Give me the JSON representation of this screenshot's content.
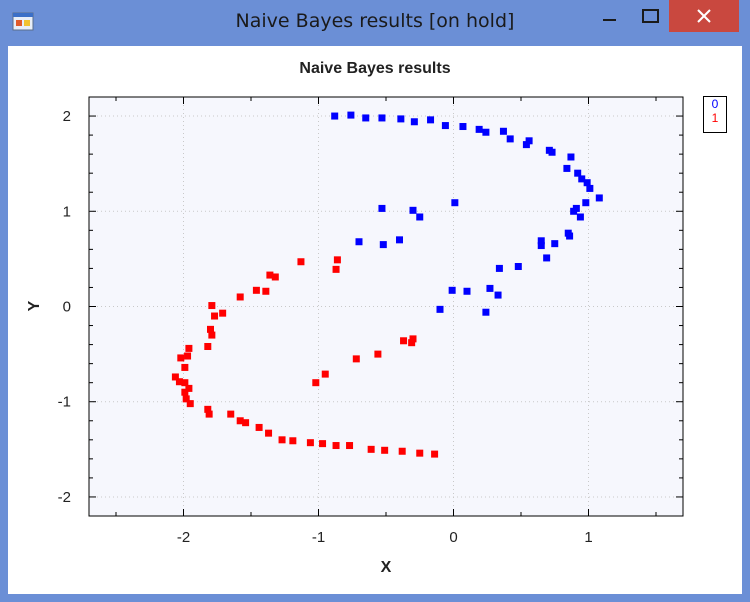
{
  "window": {
    "title": "Naive Bayes results [on hold]"
  },
  "chart_data": {
    "type": "scatter",
    "title": "Naive Bayes results",
    "xlabel": "X",
    "ylabel": "Y",
    "xlim": [
      -2.7,
      1.7
    ],
    "ylim": [
      -2.2,
      2.2
    ],
    "xticks": [
      -2,
      -1,
      0,
      1
    ],
    "yticks": [
      2,
      1,
      0,
      -1,
      -2
    ],
    "xtick_labels": [
      "-2",
      "-1",
      "0",
      "1"
    ],
    "ytick_labels": [
      "2",
      "1",
      "0",
      "-1",
      "-2"
    ],
    "grid": true,
    "legend_position": "top-right",
    "series": [
      {
        "name": "0",
        "color": "#0000ff",
        "points": [
          [
            -0.88,
            2.0
          ],
          [
            -0.76,
            2.01
          ],
          [
            -0.65,
            1.98
          ],
          [
            -0.53,
            1.98
          ],
          [
            -0.39,
            1.97
          ],
          [
            -0.29,
            1.94
          ],
          [
            -0.17,
            1.96
          ],
          [
            -0.06,
            1.9
          ],
          [
            0.07,
            1.89
          ],
          [
            0.19,
            1.86
          ],
          [
            0.24,
            1.83
          ],
          [
            0.37,
            1.84
          ],
          [
            0.42,
            1.76
          ],
          [
            0.54,
            1.7
          ],
          [
            0.56,
            1.74
          ],
          [
            0.71,
            1.64
          ],
          [
            0.73,
            1.62
          ],
          [
            0.84,
            1.45
          ],
          [
            0.87,
            1.57
          ],
          [
            0.92,
            1.4
          ],
          [
            0.95,
            1.34
          ],
          [
            0.99,
            1.3
          ],
          [
            1.01,
            1.24
          ],
          [
            1.08,
            1.14
          ],
          [
            0.98,
            1.09
          ],
          [
            0.91,
            1.03
          ],
          [
            0.94,
            0.94
          ],
          [
            0.89,
            1.0
          ],
          [
            0.85,
            0.77
          ],
          [
            0.86,
            0.74
          ],
          [
            0.75,
            0.66
          ],
          [
            0.65,
            0.69
          ],
          [
            0.65,
            0.64
          ],
          [
            0.69,
            0.51
          ],
          [
            0.48,
            0.42
          ],
          [
            0.34,
            0.4
          ],
          [
            0.27,
            0.19
          ],
          [
            0.33,
            0.12
          ],
          [
            0.24,
            -0.06
          ],
          [
            0.1,
            0.16
          ],
          [
            -0.01,
            0.17
          ],
          [
            -0.1,
            -0.03
          ],
          [
            -0.53,
            1.03
          ],
          [
            -0.3,
            1.01
          ],
          [
            -0.25,
            0.94
          ],
          [
            0.01,
            1.09
          ],
          [
            -0.7,
            0.68
          ],
          [
            -0.52,
            0.65
          ],
          [
            -0.4,
            0.7
          ]
        ]
      },
      {
        "name": "1",
        "color": "#ff0000",
        "points": [
          [
            -1.79,
            0.01
          ],
          [
            -1.71,
            -0.07
          ],
          [
            -1.77,
            -0.1
          ],
          [
            -1.8,
            -0.24
          ],
          [
            -1.79,
            -0.3
          ],
          [
            -1.82,
            -0.42
          ],
          [
            -1.96,
            -0.44
          ],
          [
            -1.97,
            -0.52
          ],
          [
            -2.02,
            -0.54
          ],
          [
            -1.99,
            -0.64
          ],
          [
            -2.06,
            -0.74
          ],
          [
            -2.03,
            -0.79
          ],
          [
            -1.99,
            -0.8
          ],
          [
            -1.96,
            -0.86
          ],
          [
            -1.99,
            -0.9
          ],
          [
            -1.98,
            -0.97
          ],
          [
            -1.95,
            -1.02
          ],
          [
            -1.82,
            -1.08
          ],
          [
            -1.81,
            -1.13
          ],
          [
            -1.65,
            -1.13
          ],
          [
            -1.58,
            -1.2
          ],
          [
            -1.54,
            -1.22
          ],
          [
            -1.44,
            -1.27
          ],
          [
            -1.37,
            -1.33
          ],
          [
            -1.27,
            -1.4
          ],
          [
            -1.19,
            -1.41
          ],
          [
            -1.06,
            -1.43
          ],
          [
            -0.97,
            -1.44
          ],
          [
            -0.87,
            -1.46
          ],
          [
            -0.77,
            -1.46
          ],
          [
            -0.61,
            -1.5
          ],
          [
            -0.51,
            -1.51
          ],
          [
            -0.38,
            -1.52
          ],
          [
            -0.25,
            -1.54
          ],
          [
            -0.14,
            -1.55
          ],
          [
            -1.58,
            0.1
          ],
          [
            -1.46,
            0.17
          ],
          [
            -1.39,
            0.16
          ],
          [
            -1.36,
            0.33
          ],
          [
            -1.32,
            0.31
          ],
          [
            -1.13,
            0.47
          ],
          [
            -0.86,
            0.49
          ],
          [
            -0.87,
            0.39
          ],
          [
            -1.02,
            -0.8
          ],
          [
            -0.95,
            -0.71
          ],
          [
            -0.72,
            -0.55
          ],
          [
            -0.56,
            -0.5
          ],
          [
            -0.37,
            -0.36
          ],
          [
            -0.31,
            -0.38
          ],
          [
            -0.3,
            -0.34
          ]
        ]
      }
    ]
  }
}
